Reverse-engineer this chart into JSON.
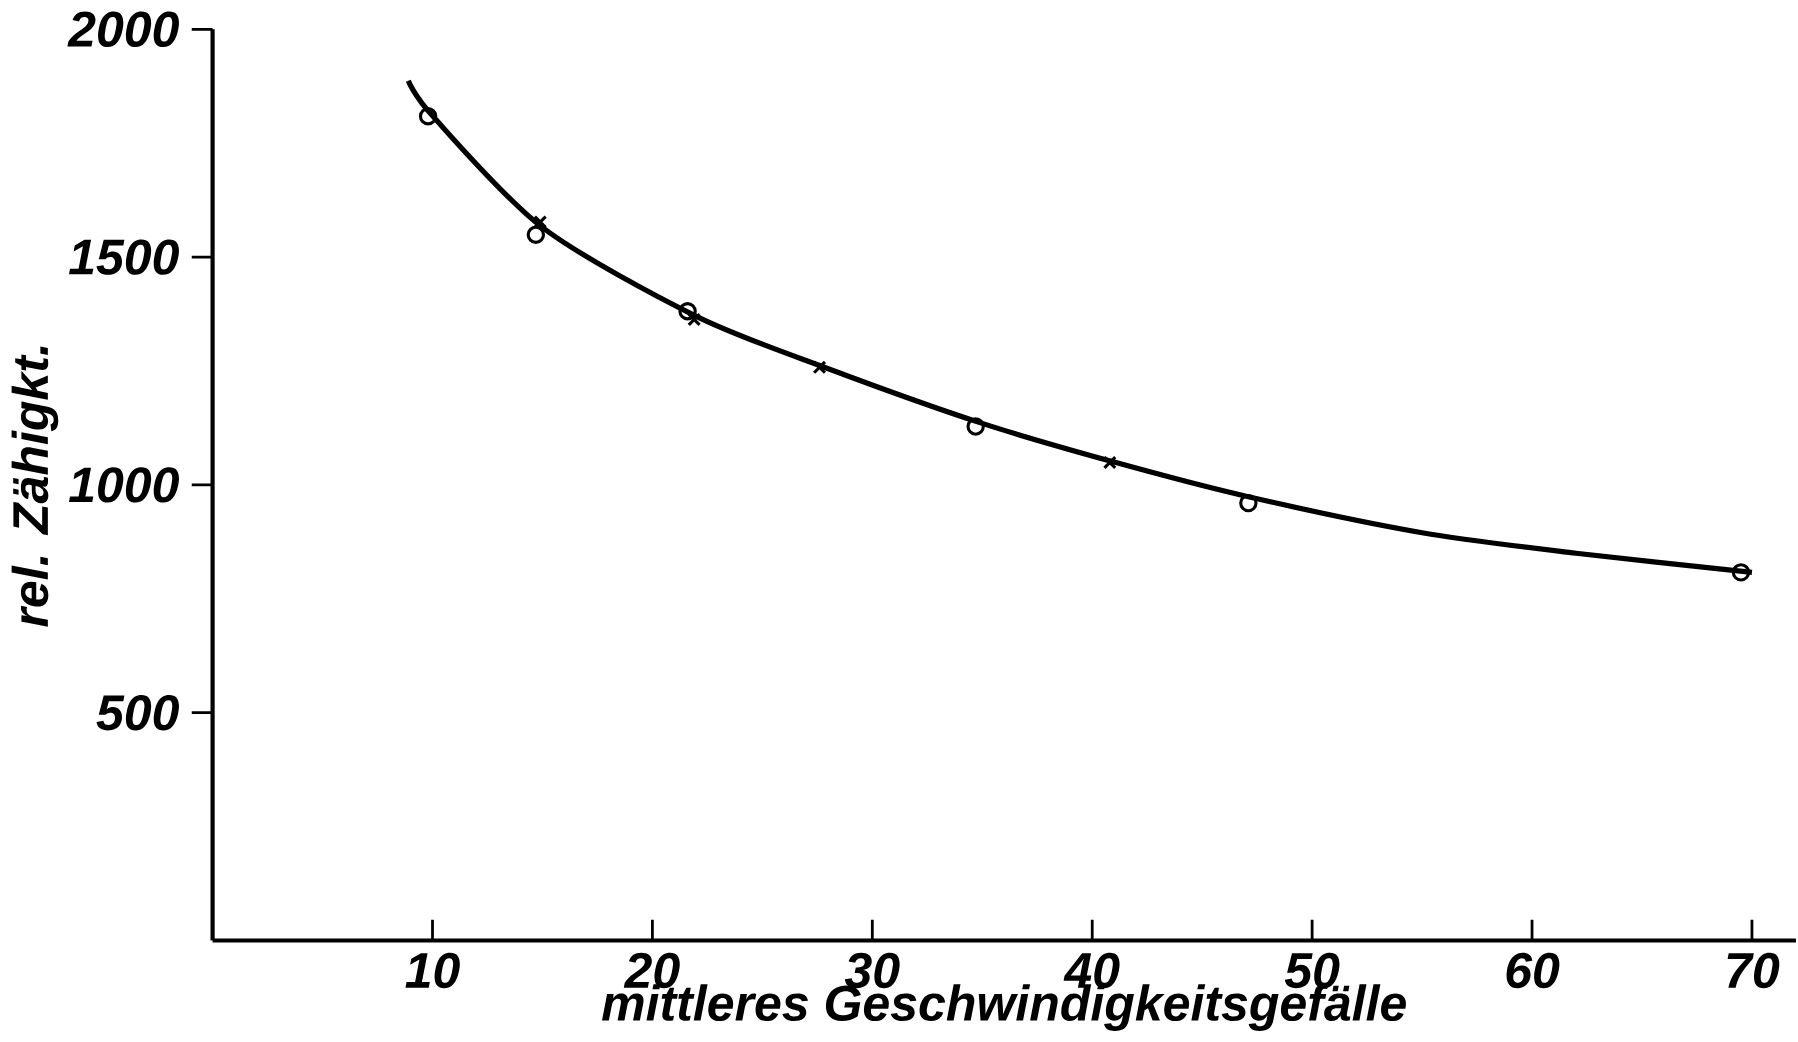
{
  "chart_data": {
    "type": "scatter",
    "xlabel": "mittleres Geschwindigkeitsgefälle",
    "ylabel": "rel. Zähigkt.",
    "xlim": [
      0,
      72
    ],
    "ylim": [
      0,
      2000
    ],
    "xticks": [
      10,
      20,
      30,
      40,
      50,
      60,
      70
    ],
    "yticks": [
      500,
      1000,
      1500,
      2000
    ],
    "grid": false,
    "series": [
      {
        "marker": "circle",
        "color": "#000000",
        "x": [
          9.8,
          14.7,
          21.6,
          34.7,
          47.1,
          69.5
        ],
        "values": [
          1809,
          1549,
          1381,
          1128,
          960,
          808
        ]
      },
      {
        "marker": "cross",
        "color": "#000000",
        "x": [
          14.9,
          21.9,
          27.6,
          40.8
        ],
        "values": [
          1577,
          1363,
          1258,
          1049
        ]
      },
      {
        "type": "line",
        "marker": "none",
        "line_style": "solid",
        "color": "#000000",
        "x": [
          8.9,
          10,
          15,
          22,
          28,
          35,
          41,
          47,
          55,
          62,
          70
        ],
        "values": [
          1887,
          1810,
          1565,
          1370,
          1255,
          1135,
          1050,
          975,
          895,
          850,
          808
        ]
      }
    ]
  }
}
